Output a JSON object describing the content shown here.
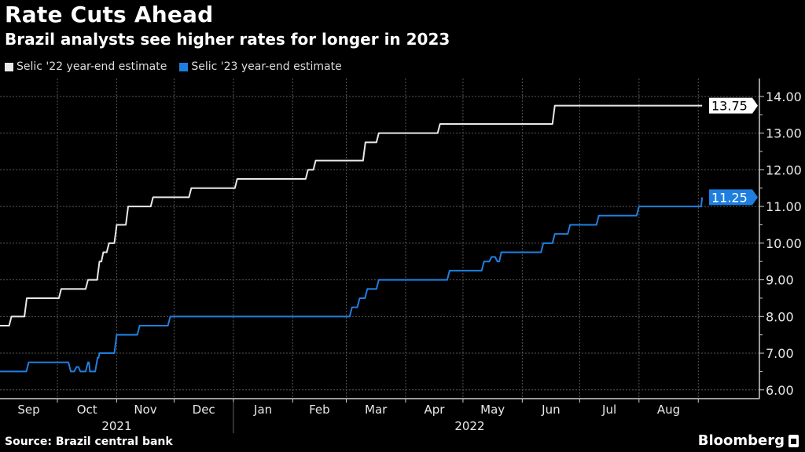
{
  "header": {
    "title": "Rate Cuts Ahead",
    "subtitle": "Brazil analysts see higher rates for longer in 2023"
  },
  "footer": {
    "source": "Source: Brazil central bank",
    "brand": "Bloomberg"
  },
  "chart_data": {
    "type": "line",
    "title": "Rate Cuts Ahead",
    "subtitle": "Brazil analysts see higher rates for longer in 2023",
    "xlabel": "",
    "ylabel": "",
    "xlim": [
      "2021-09-01",
      "2022-09-05"
    ],
    "ylim": [
      5.76,
      14.49
    ],
    "grid": true,
    "legend_position": "top-left",
    "y_axis_side": "right",
    "y_ticks": [
      "6.00",
      "7.00",
      "8.00",
      "9.00",
      "10.00",
      "11.00",
      "12.00",
      "13.00",
      "14.00"
    ],
    "x_tick_labels": [
      "Sep",
      "Oct",
      "Nov",
      "Dec",
      "Jan",
      "Feb",
      "Mar",
      "Apr",
      "May",
      "Jun",
      "Jul",
      "Aug"
    ],
    "x_year_labels": [
      "2021",
      "2022"
    ],
    "series": [
      {
        "name": "Selic '22 year-end estimate",
        "color": "#e8e8e8",
        "last_value_label": "13.75",
        "step_points": [
          [
            "2021-09-01",
            7.75
          ],
          [
            "2021-09-07",
            8.0
          ],
          [
            "2021-09-15",
            8.5
          ],
          [
            "2021-10-03",
            8.75
          ],
          [
            "2021-10-17",
            9.0
          ],
          [
            "2021-10-23",
            9.5
          ],
          [
            "2021-10-25",
            9.75
          ],
          [
            "2021-10-28",
            10.0
          ],
          [
            "2021-11-01",
            10.5
          ],
          [
            "2021-11-07",
            11.0
          ],
          [
            "2021-11-20",
            11.25
          ],
          [
            "2021-12-10",
            11.5
          ],
          [
            "2022-01-03",
            11.75
          ],
          [
            "2022-02-09",
            12.0
          ],
          [
            "2022-02-13",
            12.25
          ],
          [
            "2022-03-11",
            12.75
          ],
          [
            "2022-03-18",
            13.0
          ],
          [
            "2022-04-19",
            13.25
          ],
          [
            "2022-06-18",
            13.75
          ],
          [
            "2022-09-03",
            13.75
          ]
        ]
      },
      {
        "name": "Selic '23 year-end estimate",
        "color": "#1f7fe0",
        "last_value_label": "11.25",
        "step_points": [
          [
            "2021-09-01",
            6.5
          ],
          [
            "2021-09-16",
            6.75
          ],
          [
            "2021-10-08",
            6.5
          ],
          [
            "2021-10-11",
            6.625
          ],
          [
            "2021-10-13",
            6.5
          ],
          [
            "2021-10-17",
            6.75
          ],
          [
            "2021-10-18",
            6.5
          ],
          [
            "2021-10-22",
            6.875
          ],
          [
            "2021-10-23",
            7.0
          ],
          [
            "2021-11-01",
            7.5
          ],
          [
            "2021-11-13",
            7.75
          ],
          [
            "2021-11-29",
            8.0
          ],
          [
            "2022-03-04",
            8.25
          ],
          [
            "2022-03-08",
            8.5
          ],
          [
            "2022-03-12",
            8.75
          ],
          [
            "2022-03-18",
            9.0
          ],
          [
            "2022-04-24",
            9.25
          ],
          [
            "2022-05-12",
            9.5
          ],
          [
            "2022-05-16",
            9.625
          ],
          [
            "2022-05-19",
            9.5
          ],
          [
            "2022-05-21",
            9.75
          ],
          [
            "2022-06-12",
            10.0
          ],
          [
            "2022-06-18",
            10.25
          ],
          [
            "2022-06-26",
            10.5
          ],
          [
            "2022-07-11",
            10.75
          ],
          [
            "2022-08-01",
            11.0
          ],
          [
            "2022-09-02",
            11.0
          ],
          [
            "2022-09-03",
            11.25
          ]
        ]
      }
    ]
  }
}
